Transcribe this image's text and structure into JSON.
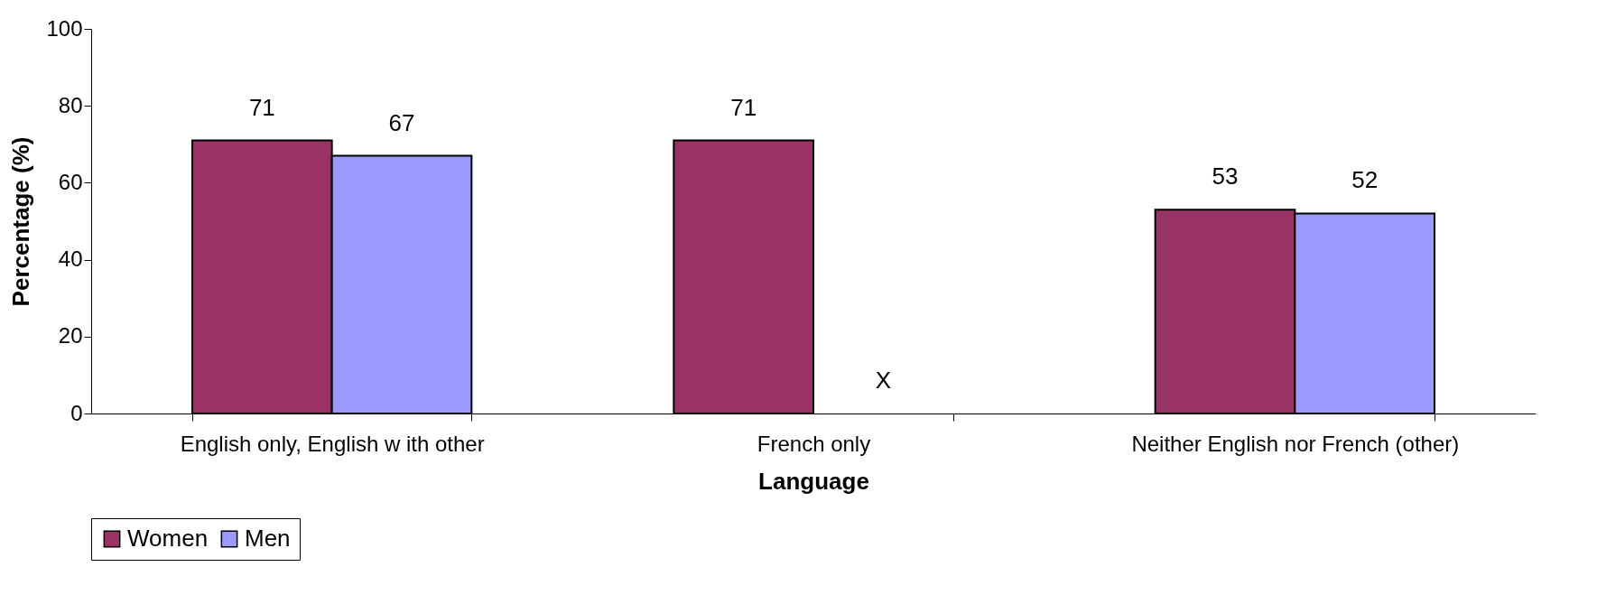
{
  "chart_data": {
    "type": "bar",
    "xlabel": "Language",
    "ylabel": "Percentage (%)",
    "categories": [
      "English only, English w ith other",
      "French only",
      "Neither English nor French (other)"
    ],
    "series": [
      {
        "name": "Women",
        "color": "#993366",
        "values": [
          71,
          71,
          53
        ],
        "value_labels": [
          "71",
          "71",
          "53"
        ]
      },
      {
        "name": "Men",
        "color": "#9999ff",
        "values": [
          67,
          null,
          52
        ],
        "value_labels": [
          "67",
          "X",
          "52"
        ]
      }
    ],
    "ylim": [
      0,
      100
    ],
    "yticks": [
      0,
      20,
      40,
      60,
      80,
      100
    ],
    "legend": "bottom"
  }
}
